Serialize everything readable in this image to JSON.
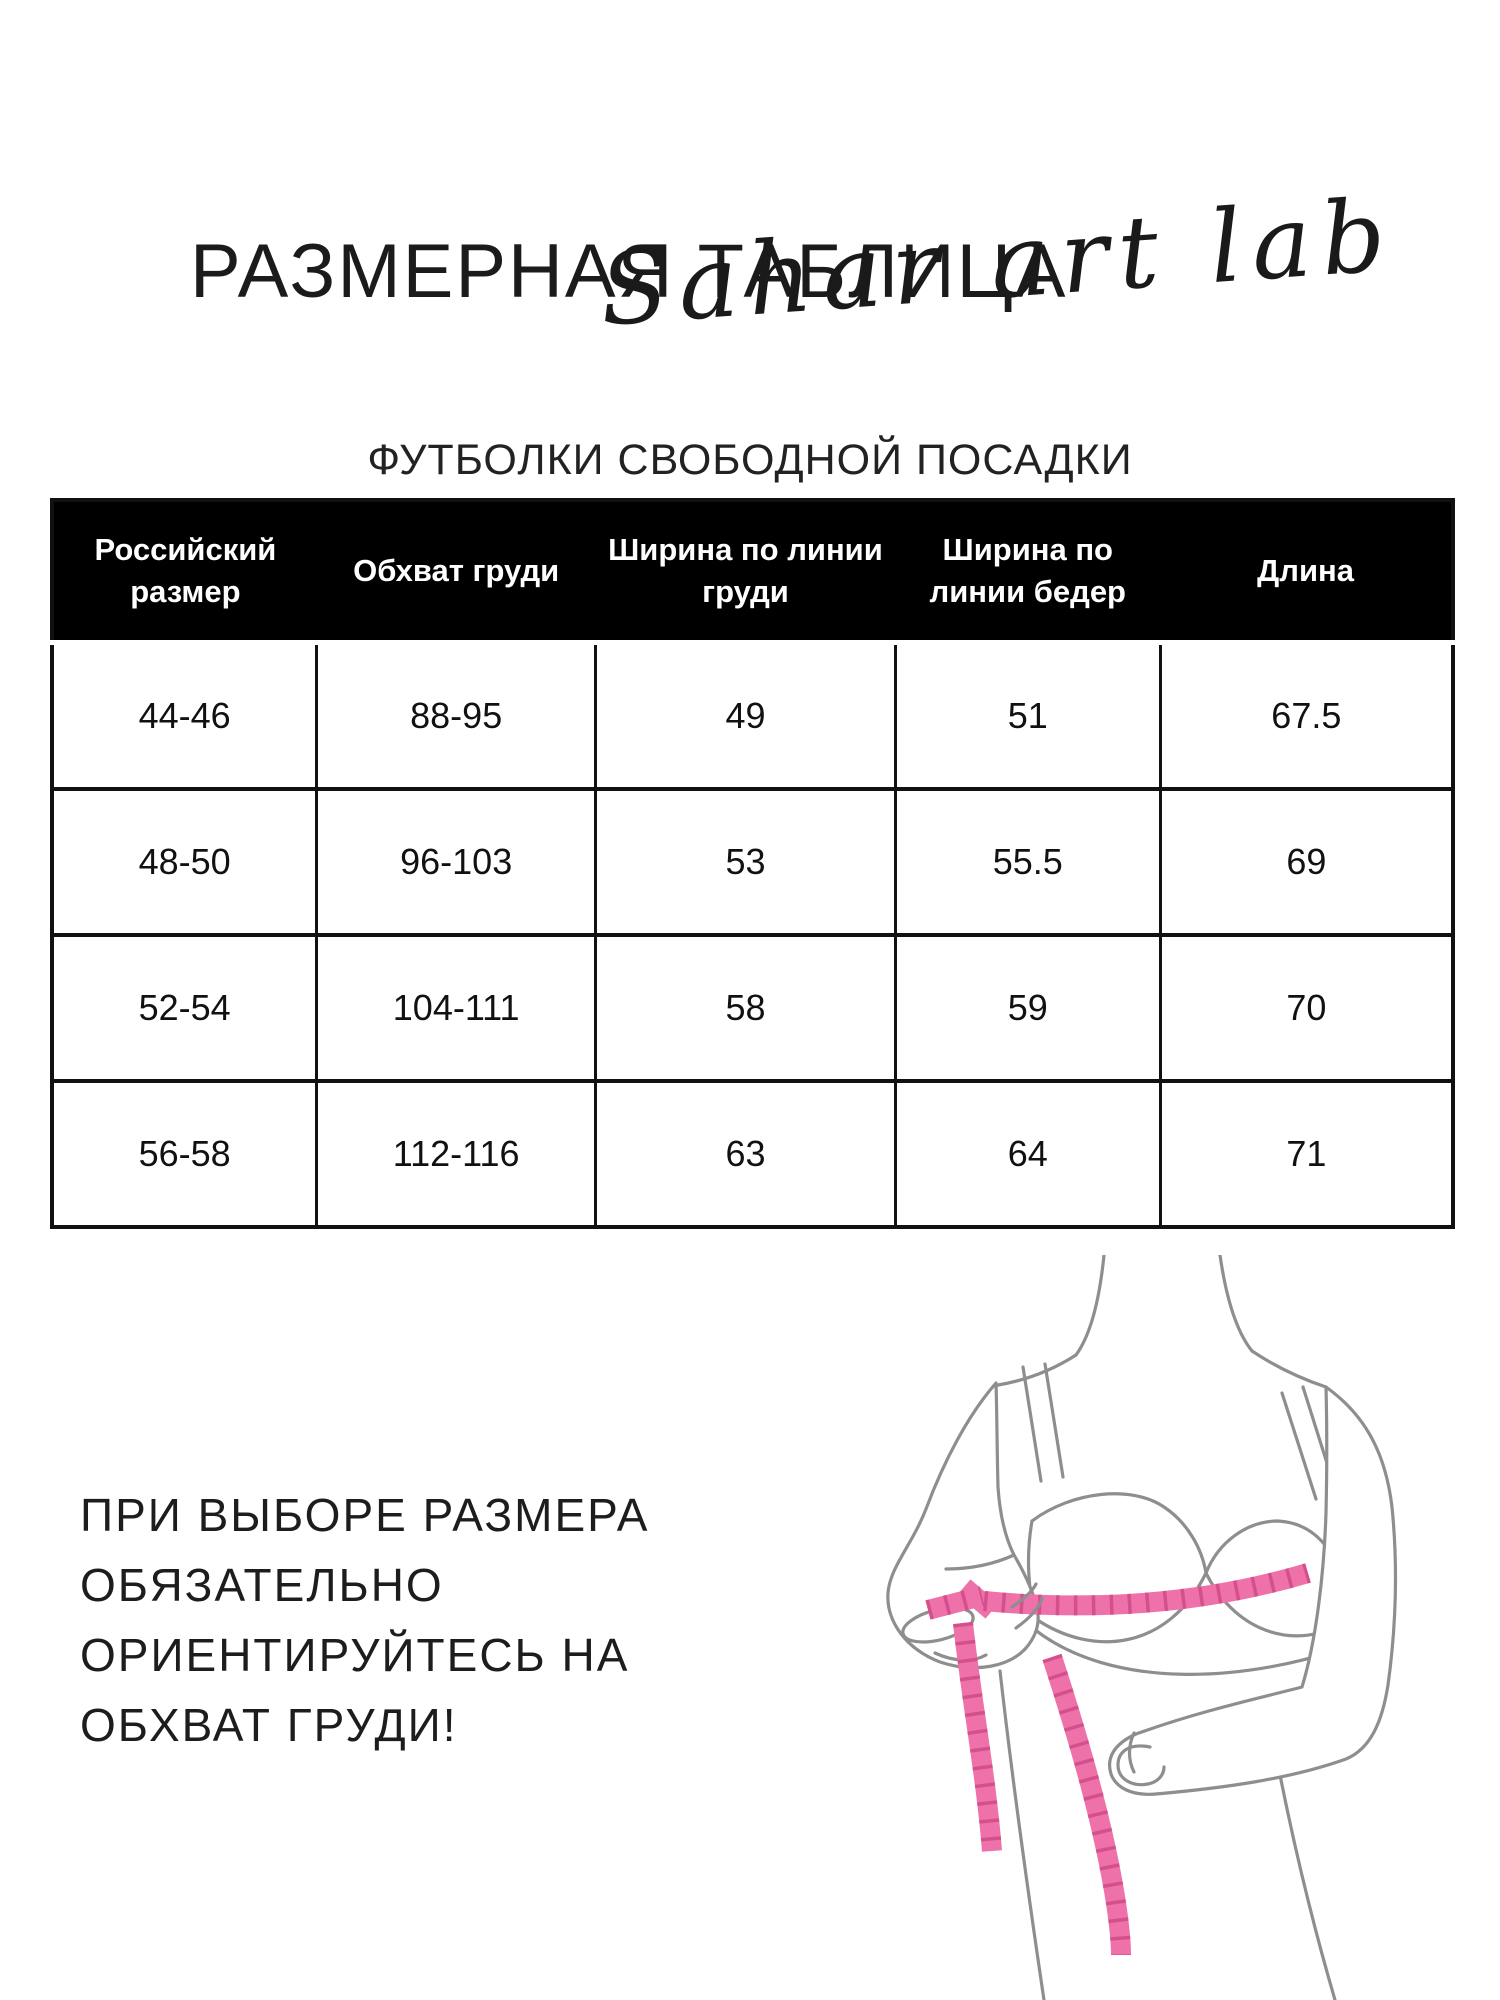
{
  "page": {
    "title": "РАЗМЕРНАЯ ТАБЛИЦА",
    "brand_script": "Sahar art lab",
    "subtitle": "ФУТБОЛКИ СВОБОДНОЙ ПОСАДКИ"
  },
  "size_table": {
    "columns": [
      "Российский размер",
      "Обхват груди",
      "Ширина по линии груди",
      "Ширина по линии бедер",
      "Длина"
    ],
    "rows": [
      [
        "44-46",
        "88-95",
        "49",
        "51",
        "67.5"
      ],
      [
        "48-50",
        "96-103",
        "53",
        "55.5",
        "69"
      ],
      [
        "52-54",
        "104-111",
        "58",
        "59",
        "70"
      ],
      [
        "56-58",
        "112-116",
        "63",
        "64",
        "71"
      ]
    ]
  },
  "note_lines": [
    "ПРИ ВЫБОРЕ РАЗМЕРА",
    "ОБЯЗАТЕЛЬНО",
    "ОРИЕНТИРУЙТЕСЬ НА",
    "ОБХВАТ ГРУДИ!"
  ],
  "illustration": "woman-measuring-bust-with-tape",
  "colors": {
    "header_bg": "#000000",
    "tape_pink": "#ee72a9",
    "tape_rung": "#d4508c",
    "line_gray": "#8e8e8e"
  }
}
